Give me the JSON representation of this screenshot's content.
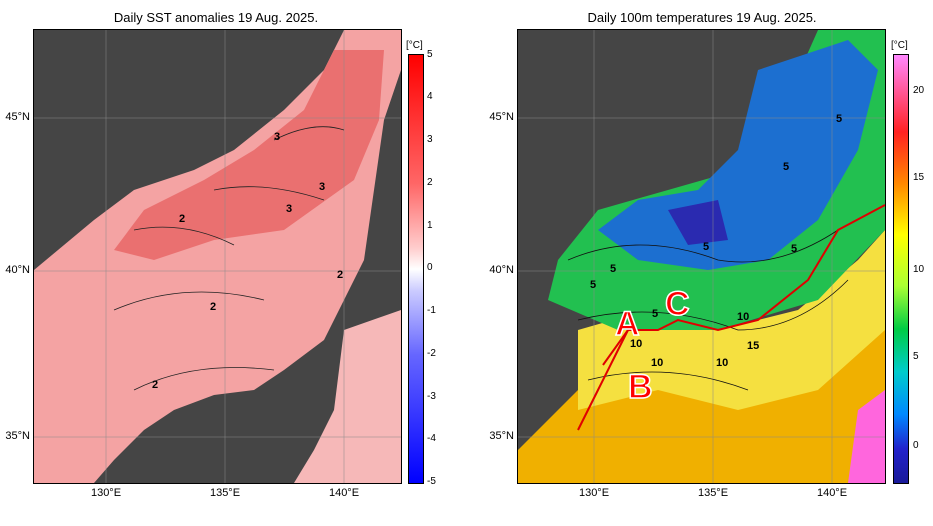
{
  "left_panel": {
    "title": "Daily SST anomalies 19 Aug. 2025.",
    "unit": "[°C]",
    "colorbar_ticks": [
      "5",
      "4",
      "3",
      "2",
      "1",
      "0",
      "-1",
      "-2",
      "-3",
      "-4",
      "-5"
    ],
    "contour_labels": [
      "3",
      "3",
      "3",
      "2",
      "2",
      "2",
      "2"
    ]
  },
  "right_panel": {
    "title": "Daily 100m temperatures 19 Aug. 2025.",
    "unit": "[°C]",
    "colorbar_ticks": [
      "20",
      "15",
      "10",
      "5",
      "0"
    ],
    "contour_labels": [
      "5",
      "5",
      "5",
      "5",
      "5",
      "5",
      "5",
      "10",
      "10",
      "10",
      "10",
      "15"
    ],
    "regions": [
      "A",
      "B",
      "C"
    ]
  },
  "axes": {
    "lat_labels": [
      "45°N",
      "40°N",
      "35°N"
    ],
    "lon_labels": [
      "130°E",
      "135°E",
      "140°E"
    ]
  },
  "colors": {
    "land": "#454545",
    "warm_anomaly": "#f08080",
    "front_line": "#e00000",
    "region_label": "#ff0000"
  }
}
